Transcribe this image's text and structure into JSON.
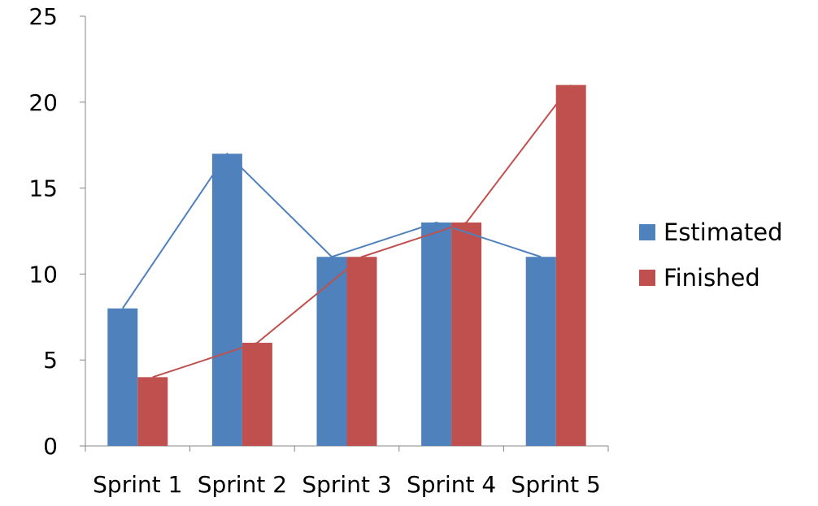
{
  "chart_data": {
    "type": "bar",
    "title": "",
    "xlabel": "",
    "ylabel": "",
    "categories": [
      "Sprint 1",
      "Sprint 2",
      "Sprint 3",
      "Sprint 4",
      "Sprint 5"
    ],
    "series": [
      {
        "name": "Estimated",
        "values": [
          8,
          17,
          11,
          13,
          11
        ],
        "color": "#4F81BD"
      },
      {
        "name": "Finished",
        "values": [
          4,
          6,
          11,
          13,
          21
        ],
        "color": "#C0504D"
      }
    ],
    "overlay_lines": [
      {
        "series": "Estimated",
        "color": "#4F81BD"
      },
      {
        "series": "Finished",
        "color": "#C0504D"
      }
    ],
    "ylim": [
      0,
      25
    ],
    "yticks": [
      0,
      5,
      10,
      15,
      20,
      25
    ],
    "grid": false,
    "legend_position": "right"
  },
  "legend": {
    "items": [
      {
        "label": "Estimated",
        "color": "#4F81BD"
      },
      {
        "label": "Finished",
        "color": "#C0504D"
      }
    ]
  }
}
